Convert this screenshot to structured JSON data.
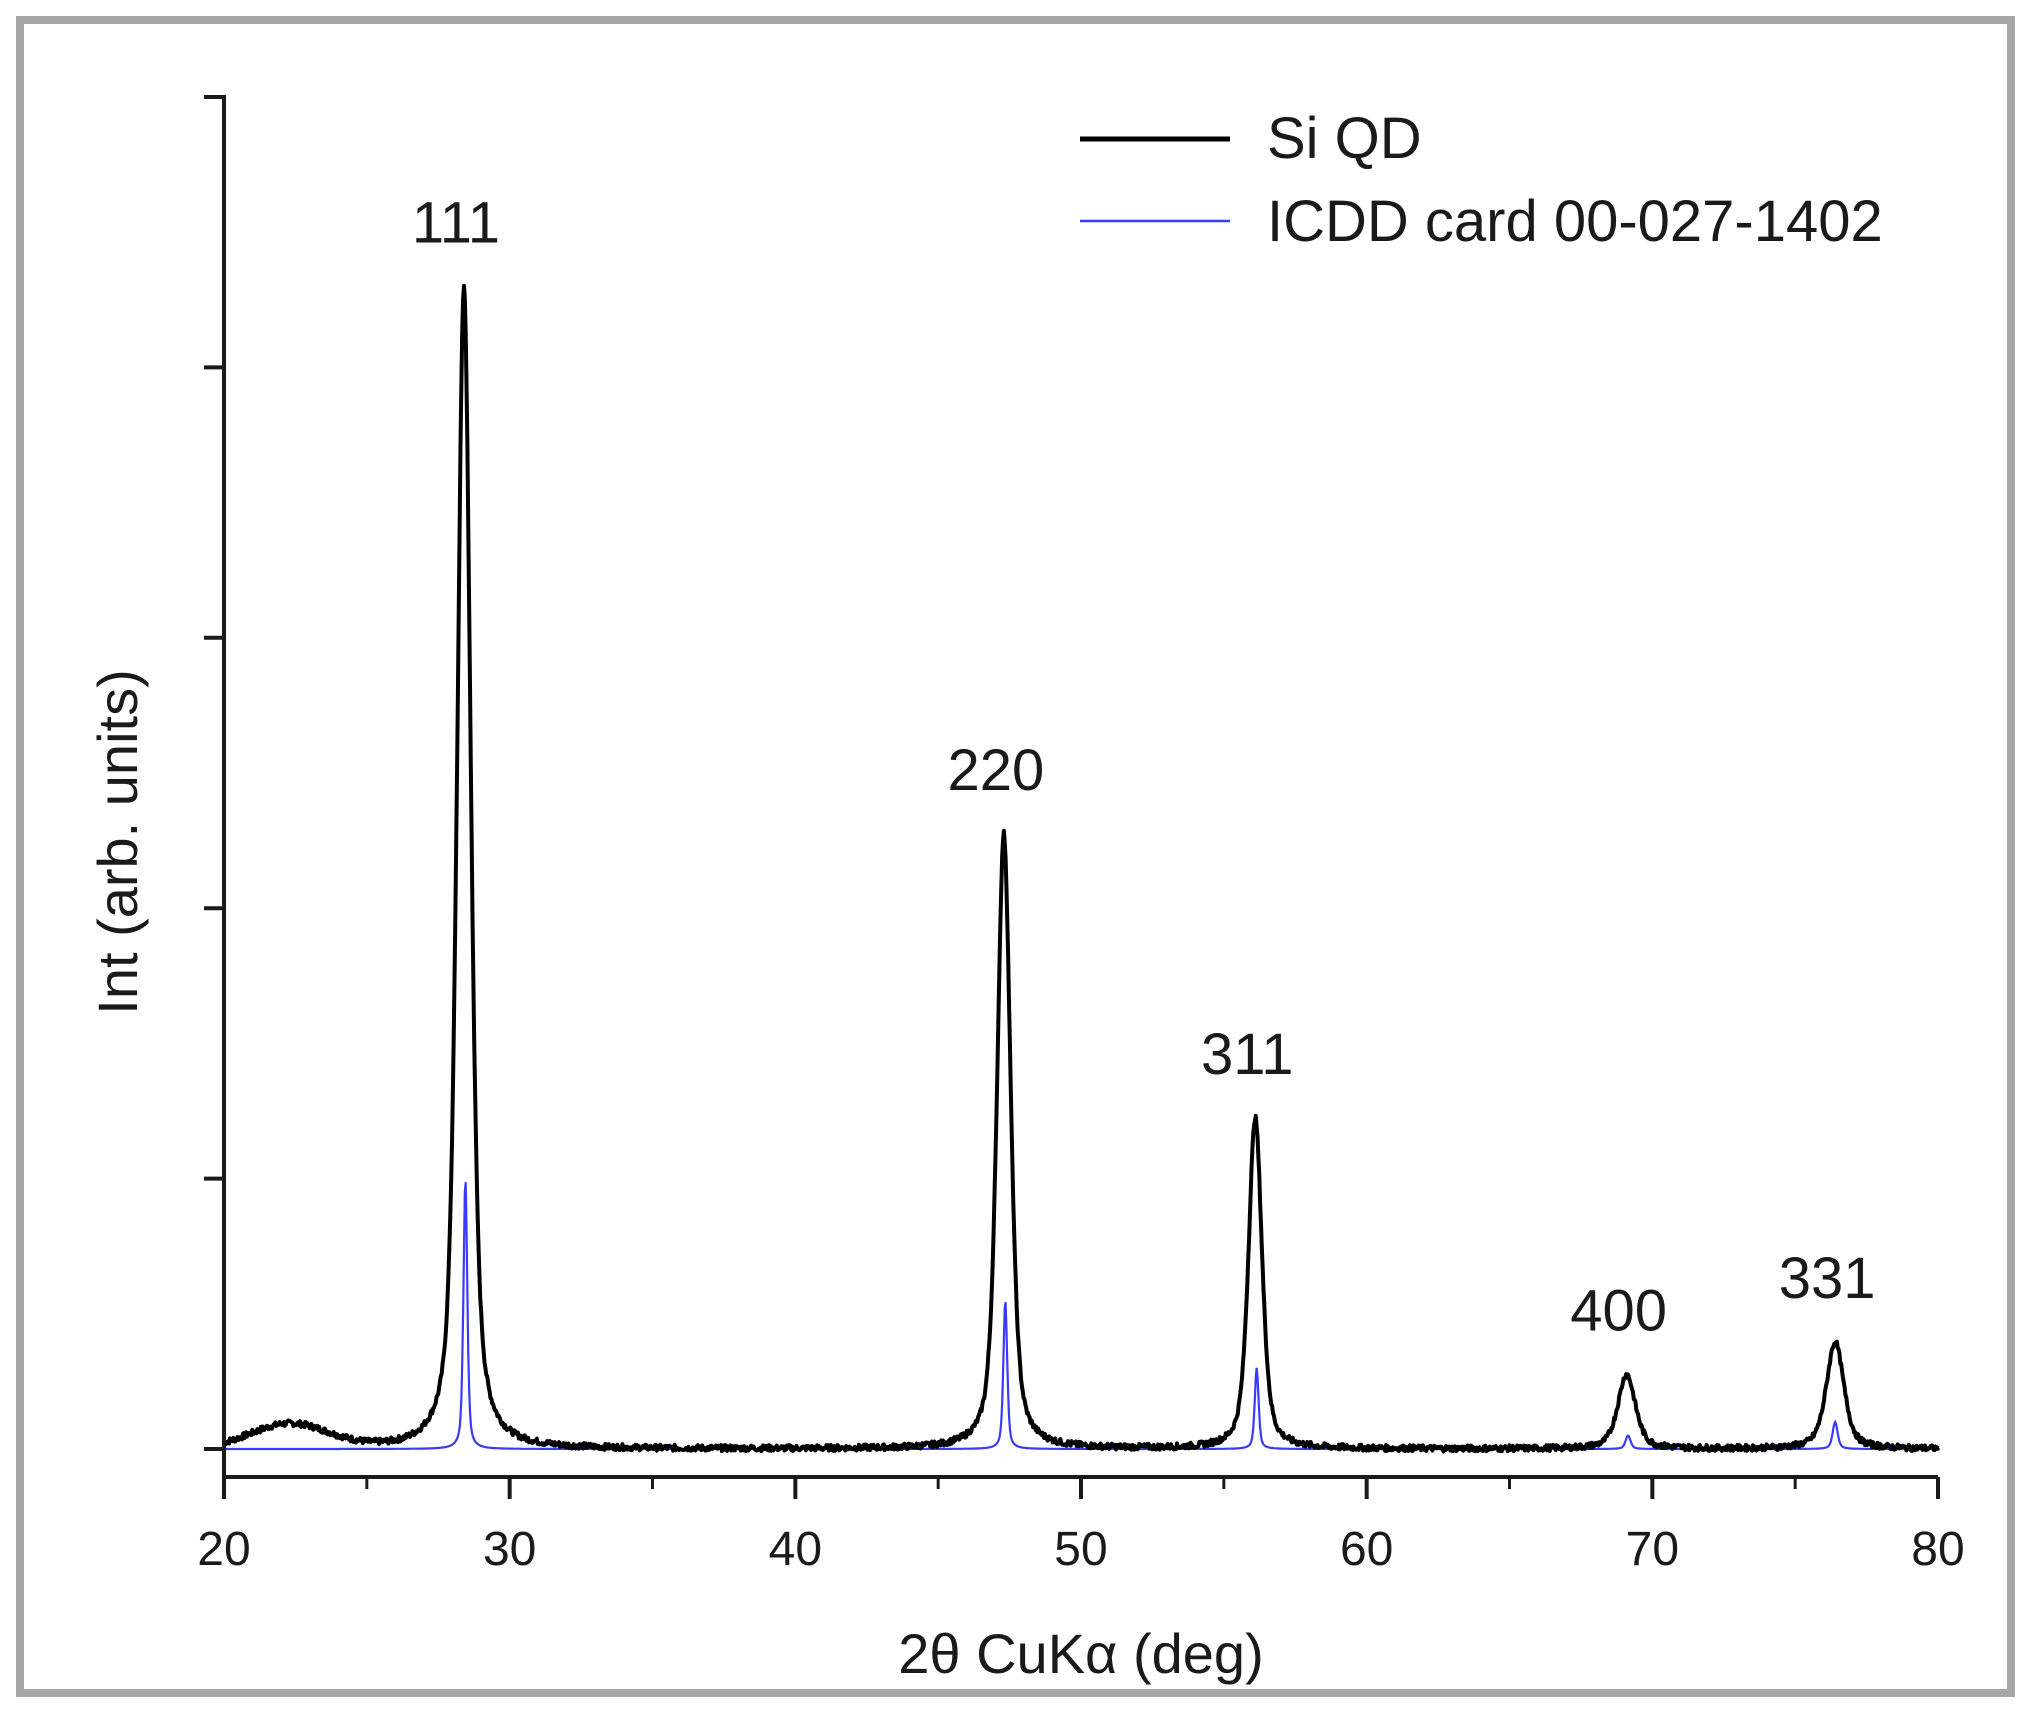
{
  "chart_data": {
    "type": "line",
    "xlabel": "2θ CuKα (deg)",
    "ylabel": "Int (arb. units)",
    "xlim": [
      20,
      80
    ],
    "ylim": [
      0,
      100
    ],
    "xticks": [
      "20",
      "30",
      "40",
      "50",
      "60",
      "70",
      "80"
    ],
    "legend_position": "top-right",
    "grid": false,
    "series": [
      {
        "name": "Si QD",
        "color": "#000000",
        "peaks": [
          {
            "x": 22.3,
            "y": 1.8
          },
          {
            "x": 28.4,
            "y": 86.0
          },
          {
            "x": 47.3,
            "y": 45.5
          },
          {
            "x": 56.1,
            "y": 24.5
          },
          {
            "x": 69.1,
            "y": 5.5
          },
          {
            "x": 76.4,
            "y": 7.9
          }
        ]
      },
      {
        "name": "ICDD card 00-027-1402",
        "color": "#3a3aff",
        "peaks": [
          {
            "x": 28.45,
            "y": 20.0
          },
          {
            "x": 47.35,
            "y": 11.0
          },
          {
            "x": 56.15,
            "y": 6.0
          },
          {
            "x": 69.15,
            "y": 1.0
          },
          {
            "x": 76.4,
            "y": 2.0
          }
        ]
      }
    ],
    "annotations": [
      {
        "text": "111",
        "x": 28.4,
        "y": 86.0
      },
      {
        "text": "220",
        "x": 47.3,
        "y": 45.5
      },
      {
        "text": "311",
        "x": 56.1,
        "y": 24.5
      },
      {
        "text": "400",
        "x": 69.1,
        "y": 5.5
      },
      {
        "text": "331",
        "x": 76.4,
        "y": 7.9
      }
    ]
  }
}
